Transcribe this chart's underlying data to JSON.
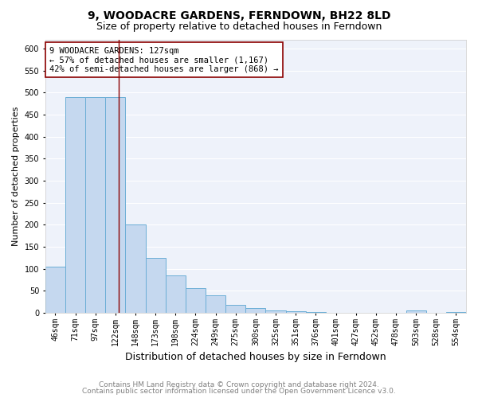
{
  "title": "9, WOODACRE GARDENS, FERNDOWN, BH22 8LD",
  "subtitle": "Size of property relative to detached houses in Ferndown",
  "xlabel": "Distribution of detached houses by size in Ferndown",
  "ylabel": "Number of detached properties",
  "categories": [
    "46sqm",
    "71sqm",
    "97sqm",
    "122sqm",
    "148sqm",
    "173sqm",
    "198sqm",
    "224sqm",
    "249sqm",
    "275sqm",
    "300sqm",
    "325sqm",
    "351sqm",
    "376sqm",
    "401sqm",
    "427sqm",
    "452sqm",
    "478sqm",
    "503sqm",
    "528sqm",
    "554sqm"
  ],
  "values": [
    105,
    490,
    490,
    490,
    200,
    125,
    85,
    55,
    40,
    17,
    10,
    5,
    4,
    2,
    0,
    0,
    0,
    0,
    5,
    0,
    2
  ],
  "bar_color": "#c5d8ef",
  "bar_edgecolor": "#6baed6",
  "bar_linewidth": 0.7,
  "property_line_x": 3.15,
  "property_line_color": "#8b0000",
  "annotation_text": "9 WOODACRE GARDENS: 127sqm\n← 57% of detached houses are smaller (1,167)\n42% of semi-detached houses are larger (868) →",
  "box_facecolor": "white",
  "box_edgecolor": "#8b0000",
  "ylim": [
    0,
    620
  ],
  "yticks": [
    0,
    50,
    100,
    150,
    200,
    250,
    300,
    350,
    400,
    450,
    500,
    550,
    600
  ],
  "footer1": "Contains HM Land Registry data © Crown copyright and database right 2024.",
  "footer2": "Contains public sector information licensed under the Open Government Licence v3.0.",
  "background_color": "#eef2fa",
  "grid_color": "white",
  "title_fontsize": 10,
  "subtitle_fontsize": 9,
  "xlabel_fontsize": 9,
  "ylabel_fontsize": 8,
  "tick_fontsize": 7,
  "annotation_fontsize": 7.5,
  "footer_fontsize": 6.5
}
